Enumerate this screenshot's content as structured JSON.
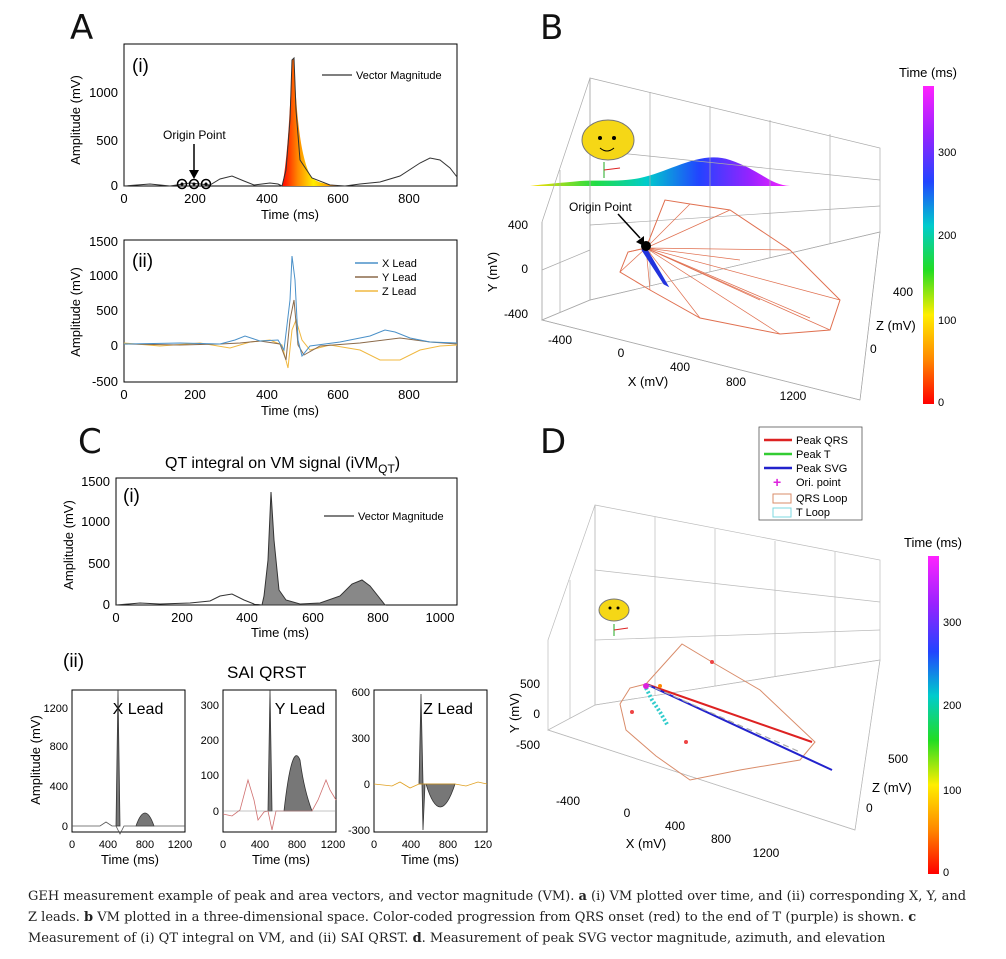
{
  "panels": {
    "a": "A",
    "b": "B",
    "c": "C",
    "d": "D"
  },
  "a": {
    "i": {
      "tag": "(i)",
      "legend": "Vector Magnitude",
      "annotation": "Origin Point",
      "xlabel": "Time (ms)",
      "ylabel": "Amplitude (mV)",
      "xticks": [
        "0",
        "200",
        "400",
        "600",
        "800"
      ],
      "yticks": [
        "0",
        "500",
        "1000"
      ]
    },
    "ii": {
      "tag": "(ii)",
      "xlabel": "Time (ms)",
      "ylabel": "Amplitude (mV)",
      "xticks": [
        "0",
        "200",
        "400",
        "600",
        "800"
      ],
      "yticks": [
        "-500",
        "0",
        "500",
        "1000",
        "1500"
      ],
      "legend": [
        "X Lead",
        "Y Lead",
        "Z Lead"
      ]
    }
  },
  "b": {
    "annotation": "Origin Point",
    "colorbar_title": "Time (ms)",
    "colorbar_ticks": [
      "0",
      "100",
      "200",
      "300"
    ],
    "ylabel": "Y (mV)",
    "yticks": [
      "400",
      "0",
      "-400"
    ],
    "xlabel": "X (mV)",
    "xticks": [
      "-400",
      "0",
      "400",
      "800",
      "1200"
    ],
    "zlabel": "Z (mV)",
    "zticks": [
      "400",
      "0"
    ]
  },
  "c": {
    "title": "QT integral on VM signal (iVM",
    "title_sub": "QT",
    "title_end": ")",
    "i": {
      "tag": "(i)",
      "legend": "Vector Magnitude",
      "xlabel": "Time (ms)",
      "ylabel": "Amplitude (mV)",
      "xticks": [
        "0",
        "200",
        "400",
        "600",
        "800",
        "1000"
      ],
      "yticks": [
        "0",
        "500",
        "1000",
        "1500"
      ]
    },
    "ii": {
      "tag": "(ii)",
      "title": "SAI QRST",
      "x": {
        "label": "X Lead",
        "ylabel": "Amplitude (mV)",
        "yticks": [
          "1200",
          "800",
          "400",
          "0"
        ],
        "xticks": [
          "0",
          "400",
          "800",
          "1200"
        ],
        "xlabel": "Time (ms)"
      },
      "y": {
        "label": "Y Lead",
        "yticks": [
          "300",
          "200",
          "100",
          "0"
        ],
        "xticks": [
          "0",
          "400",
          "800",
          "1200"
        ],
        "xlabel": "Time (ms)"
      },
      "z": {
        "label": "Z Lead",
        "yticks": [
          "600",
          "300",
          "0",
          "-300"
        ],
        "xticks": [
          "0",
          "400",
          "800",
          "120"
        ],
        "xlabel": "Time (ms)"
      }
    }
  },
  "d": {
    "legend": [
      "Peak QRS",
      "Peak T",
      "Peak SVG",
      "Ori. point",
      "QRS Loop",
      "T Loop"
    ],
    "colorbar_title": "Time (ms)",
    "colorbar_ticks": [
      "0",
      "100",
      "200",
      "300"
    ],
    "ylabel": "Y (mV)",
    "yticks": [
      "500",
      "0",
      "-500"
    ],
    "xlabel": "X (mV)",
    "xticks": [
      "-400",
      "0",
      "400",
      "800",
      "1200"
    ],
    "zlabel": "Z (mV)",
    "zticks": [
      "500",
      "0"
    ]
  },
  "caption": {
    "p1": "GEH measurement example of peak and area vectors, and vector magnitude (VM). ",
    "a": "a",
    "p2": " (i) VM plotted over time, and (ii) corresponding X, Y, and Z leads. ",
    "b": "b",
    "p3": " VM plotted in a three-dimensional space. Color-coded progression from QRS onset (red) to the end of T (purple) is shown. ",
    "c": "c",
    "p4": " Measurement of (i) QT integral on VM, and (ii) SAI QRST. ",
    "d": "d",
    "p5": ". Measurement of peak SVG vector magnitude, azimuth, and elevation"
  },
  "colors": {
    "rainbow": [
      "#ff0000",
      "#ff8800",
      "#ffee00",
      "#22dd22",
      "#00cccc",
      "#2244ff",
      "#9922ff",
      "#ff22ff"
    ],
    "xlead": "#4a90c8",
    "ylead": "#8b6a4a",
    "zlead": "#f0b840",
    "qrs": "#d22",
    "t": "#3c3",
    "svg": "#22c",
    "ori": "#d2d",
    "qrsloop": "#d98c6a",
    "tloop": "#7cd8e0"
  }
}
